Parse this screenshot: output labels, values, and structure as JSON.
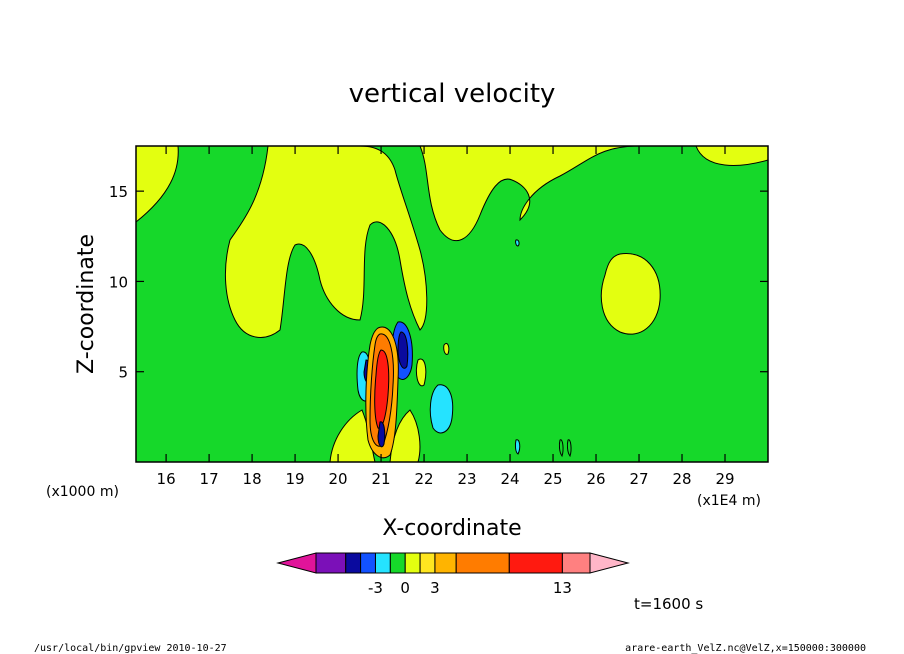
{
  "chart_data": {
    "type": "heatmap",
    "title": "vertical velocity",
    "xlabel": "X-coordinate",
    "ylabel": "Z-coordinate",
    "x_unit_label": "(x1000 m)",
    "x_scale_label": "(x1E4 m)",
    "xlim": [
      15.3,
      30.0
    ],
    "ylim": [
      0.0,
      17.5
    ],
    "x_ticks": [
      "16",
      "17",
      "18",
      "19",
      "20",
      "21",
      "22",
      "23",
      "24",
      "25",
      "26",
      "27",
      "28",
      "29"
    ],
    "y_ticks": [
      "5",
      "10",
      "15"
    ],
    "colorbar": {
      "colors": [
        "#e0149a",
        "#7b10b8",
        "#0a0a9e",
        "#1252ff",
        "#25e3ff",
        "#16d82a",
        "#e3ff10",
        "#ffe620",
        "#ffb400",
        "#ff7c00",
        "#ff1a10",
        "#ff8080",
        "#ffb6c8"
      ],
      "tick_labels": [
        "-3",
        "0",
        "3",
        "13"
      ]
    },
    "annotations": {
      "time": "t=1600 s",
      "footer_left": "/usr/local/bin/gpview  2010-10-27",
      "footer_right": "arare-earth_VelZ.nc@VelZ,x=150000:300000"
    }
  }
}
